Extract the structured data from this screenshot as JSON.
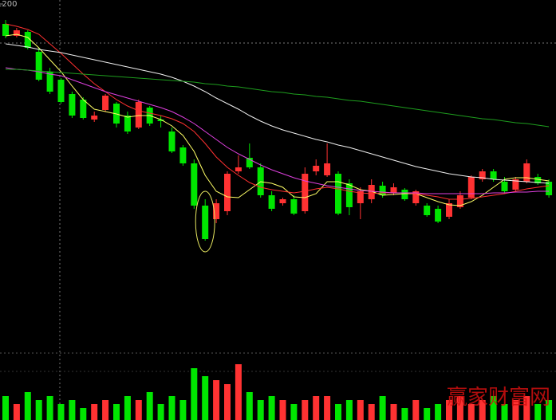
{
  "chart_data": {
    "type": "candlestick",
    "up_color": "#ff3232",
    "down_color": "#00e600",
    "ylim": [
      765,
      1205
    ],
    "yticks": [
      1200
    ],
    "open": [
      1175,
      1160,
      1165,
      1140,
      1115,
      1105,
      1087,
      1080,
      1055,
      1067,
      1075,
      1060,
      1045,
      1070,
      1055,
      1040,
      1020,
      1000,
      947,
      930,
      940,
      990,
      1007,
      995,
      960,
      950,
      955,
      940,
      990,
      985,
      987,
      975,
      950,
      955,
      972,
      963,
      967,
      950,
      947,
      943,
      933,
      945,
      957,
      980,
      990,
      977,
      967,
      977,
      983,
      977
    ],
    "close": [
      1160,
      1167,
      1145,
      1105,
      1090,
      1077,
      1060,
      1057,
      1060,
      1085,
      1050,
      1040,
      1077,
      1050,
      1053,
      1015,
      1000,
      947,
      905,
      950,
      987,
      995,
      995,
      960,
      943,
      955,
      937,
      987,
      997,
      1000,
      937,
      945,
      965,
      973,
      960,
      970,
      955,
      965,
      935,
      927,
      950,
      960,
      983,
      990,
      980,
      965,
      980,
      1000,
      975,
      960
    ],
    "high": [
      1180,
      1170,
      1167,
      1145,
      1120,
      1107,
      1090,
      1083,
      1065,
      1087,
      1077,
      1065,
      1080,
      1072,
      1060,
      1045,
      1023,
      1005,
      955,
      955,
      990,
      1010,
      1025,
      1000,
      965,
      957,
      960,
      995,
      1005,
      1025,
      990,
      980,
      970,
      980,
      977,
      975,
      969,
      967,
      950,
      947,
      955,
      965,
      985,
      993,
      993,
      983,
      983,
      1005,
      987,
      980
    ],
    "low": [
      1157,
      1158,
      1143,
      1103,
      1087,
      1075,
      1057,
      1055,
      1052,
      1065,
      1045,
      1037,
      1043,
      1047,
      1045,
      1013,
      997,
      943,
      903,
      925,
      935,
      987,
      993,
      957,
      940,
      947,
      935,
      937,
      985,
      983,
      935,
      935,
      930,
      950,
      957,
      960,
      953,
      947,
      933,
      925,
      930,
      943,
      955,
      977,
      977,
      963,
      965,
      975,
      973,
      957
    ],
    "lines": [
      {
        "color": "#ffff66",
        "values": [
          1160,
          1162,
          1158,
          1145,
          1130,
          1115,
          1097,
          1080,
          1068,
          1065,
          1062,
          1058,
          1060,
          1060,
          1055,
          1047,
          1035,
          1015,
          985,
          965,
          958,
          957,
          967,
          977,
          975,
          970,
          958,
          957,
          962,
          977,
          977,
          973,
          967,
          965,
          960,
          961,
          962,
          962,
          957,
          952,
          948,
          947,
          952,
          960,
          970,
          980,
          982,
          982,
          980,
          978
        ]
      },
      {
        "color": "#ff3030",
        "values": [
          1175,
          1172,
          1168,
          1162,
          1150,
          1138,
          1125,
          1112,
          1100,
          1090,
          1080,
          1072,
          1066,
          1063,
          1060,
          1056,
          1050,
          1040,
          1025,
          1008,
          995,
          985,
          976,
          970,
          967,
          965,
          963,
          965,
          968,
          970,
          968,
          965,
          963,
          962,
          963,
          963,
          963,
          962,
          960,
          958,
          955,
          955,
          956,
          958,
          960,
          962,
          965,
          968,
          970,
          972
        ]
      },
      {
        "color": "#e040e0",
        "values": [
          1120,
          1118,
          1117,
          1115,
          1112,
          1110,
          1105,
          1100,
          1095,
          1090,
          1086,
          1082,
          1078,
          1074,
          1070,
          1065,
          1058,
          1050,
          1040,
          1030,
          1020,
          1012,
          1005,
          998,
          992,
          987,
          982,
          978,
          975,
          972,
          970,
          968,
          966,
          965,
          964,
          963,
          963,
          963,
          962,
          962,
          962,
          962,
          962,
          962,
          963,
          963,
          964,
          964,
          965,
          965
        ]
      },
      {
        "color": "#f0f0f0",
        "values": [
          1150,
          1148,
          1146,
          1143,
          1141,
          1139,
          1136,
          1133,
          1130,
          1127,
          1124,
          1121,
          1118,
          1115,
          1112,
          1108,
          1103,
          1097,
          1090,
          1082,
          1075,
          1068,
          1060,
          1053,
          1047,
          1042,
          1038,
          1034,
          1030,
          1027,
          1023,
          1020,
          1016,
          1012,
          1008,
          1004,
          1000,
          996,
          993,
          990,
          987,
          985,
          983,
          982,
          980,
          979,
          978,
          977,
          976,
          975
        ]
      },
      {
        "color": "#1e9e1e",
        "values": [
          1118,
          1118,
          1117,
          1116,
          1115,
          1114,
          1113,
          1112,
          1111,
          1110,
          1109,
          1108,
          1107,
          1106,
          1105,
          1104,
          1103,
          1102,
          1100,
          1099,
          1097,
          1096,
          1094,
          1092,
          1090,
          1089,
          1087,
          1086,
          1084,
          1083,
          1081,
          1079,
          1078,
          1076,
          1074,
          1072,
          1070,
          1068,
          1066,
          1064,
          1062,
          1060,
          1058,
          1056,
          1055,
          1053,
          1051,
          1050,
          1048,
          1046
        ]
      }
    ],
    "volume": {
      "ylim": [
        0,
        82
      ],
      "values": [
        30,
        20,
        35,
        25,
        30,
        20,
        25,
        15,
        20,
        25,
        20,
        30,
        25,
        35,
        20,
        30,
        25,
        65,
        55,
        50,
        45,
        70,
        35,
        25,
        30,
        25,
        20,
        25,
        30,
        30,
        20,
        25,
        25,
        20,
        30,
        20,
        15,
        25,
        15,
        20,
        25,
        30,
        20,
        25,
        30,
        20,
        25,
        30,
        20,
        25
      ]
    },
    "watermark": "赢家财富网"
  }
}
